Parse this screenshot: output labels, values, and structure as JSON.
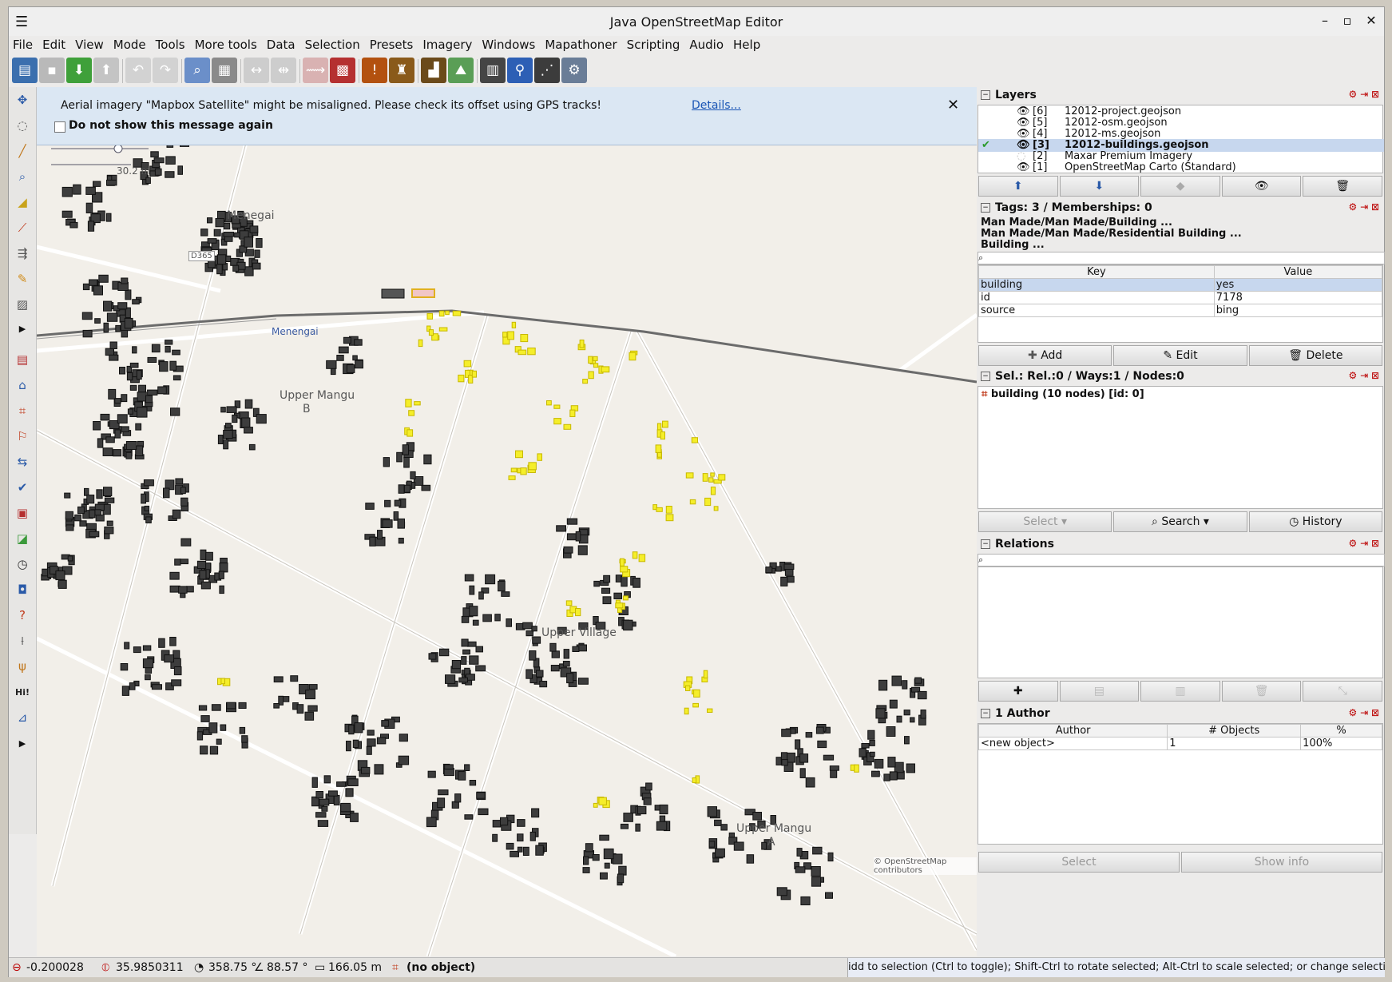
{
  "window": {
    "title": "Java OpenStreetMap Editor"
  },
  "menu": [
    "File",
    "Edit",
    "View",
    "Mode",
    "Tools",
    "More tools",
    "Data",
    "Selection",
    "Presets",
    "Imagery",
    "Windows",
    "Mapathoner",
    "Scripting",
    "Audio",
    "Help"
  ],
  "notice": {
    "message": "Aerial imagery \"Mapbox Satellite\" might be misaligned. Please check its offset using GPS tracks!",
    "details": "Details...",
    "checkbox_label": "Do not show this message again"
  },
  "map": {
    "labels": {
      "menegai_top": "Menegai",
      "menengai_station": "Menengai",
      "road": "D365",
      "upper_mangu_b_1": "Upper Mangu",
      "upper_mangu_b_2": "B",
      "upper_village": "Upper Village",
      "upper_mangu_a_1": "Upper Mangu",
      "upper_mangu_a_2": "A",
      "scale": "30.2 m",
      "attribution": "© OpenStreetMap contributors"
    }
  },
  "layers": {
    "title": "Layers",
    "items": [
      {
        "idx": "[6]",
        "name": "12012-project.geojson"
      },
      {
        "idx": "[5]",
        "name": "12012-osm.geojson"
      },
      {
        "idx": "[4]",
        "name": "12012-ms.geojson"
      },
      {
        "idx": "[3]",
        "name": "12012-buildings.geojson"
      },
      {
        "idx": "[2]",
        "name": "Maxar Premium Imagery"
      },
      {
        "idx": "[1]",
        "name": "OpenStreetMap Carto (Standard)"
      }
    ]
  },
  "tags": {
    "title": "Tags: 3 / Memberships: 0",
    "presets": [
      "Man Made/Man Made/Building ...",
      "Man Made/Man Made/Residential Building ...",
      "Building ..."
    ],
    "col_key": "Key",
    "col_value": "Value",
    "rows": [
      {
        "k": "building",
        "v": "yes"
      },
      {
        "k": "id",
        "v": "7178"
      },
      {
        "k": "source",
        "v": "bing"
      }
    ],
    "add": "Add",
    "edit": "Edit",
    "delete": "Delete"
  },
  "selection": {
    "title": "Sel.: Rel.:0 / Ways:1 / Nodes:0",
    "item": "building (10 nodes) [id: 0]",
    "select": "Select",
    "search": "Search",
    "history": "History"
  },
  "relations": {
    "title": "Relations"
  },
  "authors": {
    "title": "1 Author",
    "col_author": "Author",
    "col_objects": "# Objects",
    "col_pct": "%",
    "row": {
      "author": "<new object>",
      "objects": "1",
      "pct": "100%"
    },
    "select": "Select",
    "show_info": "Show info"
  },
  "status": {
    "lat": "-0.200028",
    "lon": "35.9850311",
    "heading": "358.75 °",
    "angle": "88.57 °",
    "distance": "166.05 m",
    "object": "(no object)",
    "hint": "idd to selection (Ctrl to toggle); Shift-Ctrl to rotate selected; Alt-Ctrl to scale selected; or change selection"
  }
}
